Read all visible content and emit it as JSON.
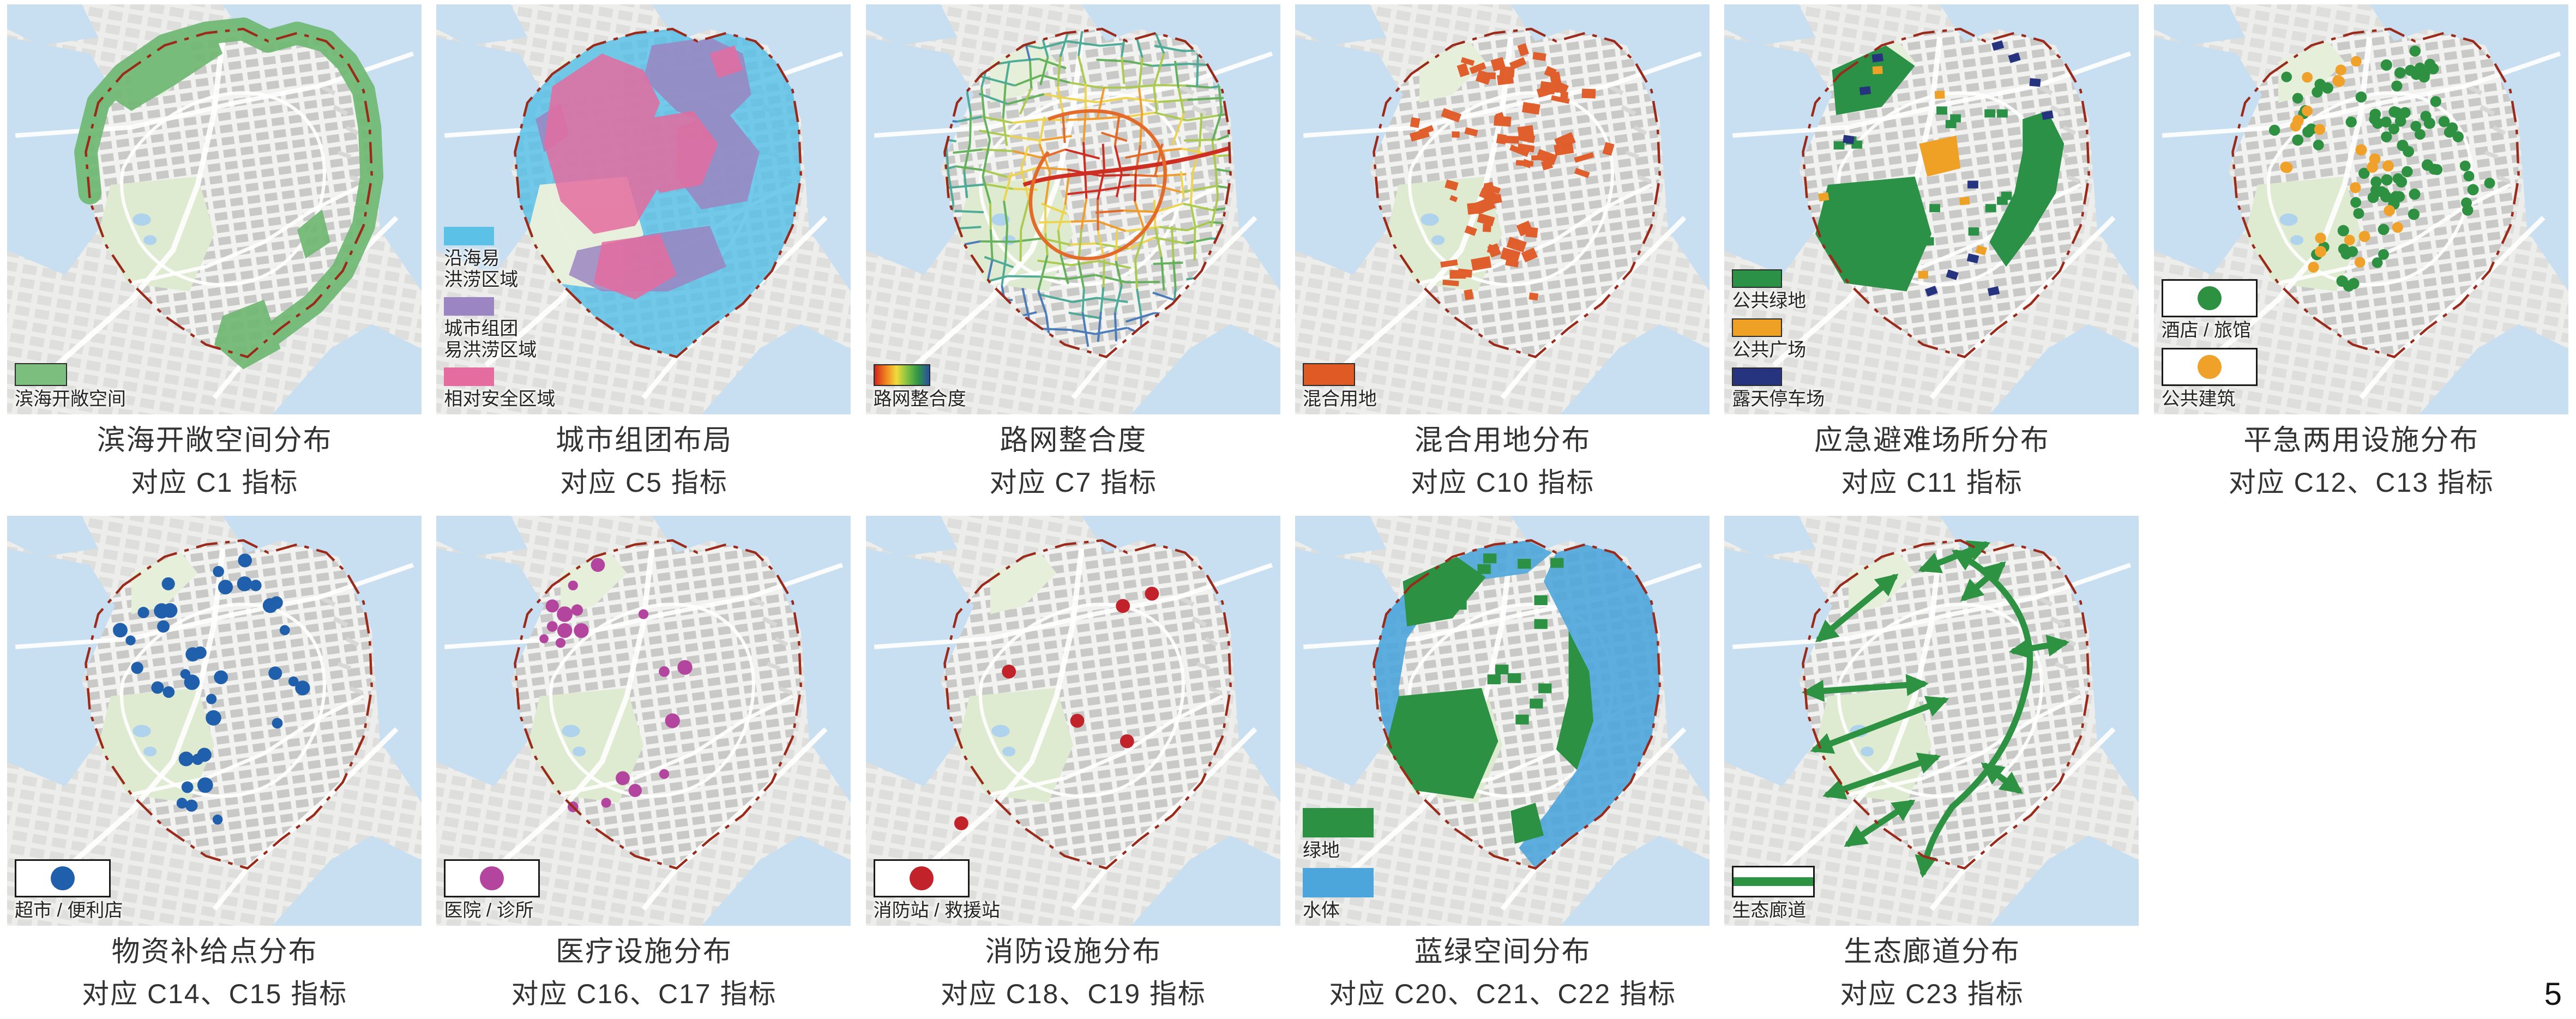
{
  "page_number": "5",
  "base_map": {
    "boundary_color": "#9C2A1A",
    "water_color": "#C7DFF0",
    "land_color": "#EDEDEB",
    "blocks_outside_color": "#DBDBD9",
    "blocks_inside_color": "#C7C7C5",
    "park_color": "#DFEBD0",
    "lake_color": "#AFD3EC"
  },
  "panels": [
    {
      "id": "coastal-open-space",
      "caption_line1": "滨海开敞空间分布",
      "caption_line2": "对应 C1 指标",
      "legend": [
        {
          "type": "swatch",
          "label": "滨海开敞空间",
          "color": "#7CBE7E",
          "border": true
        }
      ],
      "overlay": {
        "kind": "coastband",
        "color": "#6FB873"
      }
    },
    {
      "id": "urban-clusters",
      "caption_line1": "城市组团布局",
      "caption_line2": "对应 C5 指标",
      "legend": [
        {
          "type": "swatch",
          "small": true,
          "label": "沿海易\n洪涝区域",
          "color": "#5BC1E7"
        },
        {
          "type": "swatch",
          "small": true,
          "label": "城市组团\n易洪涝区域",
          "color": "#9B85C2"
        },
        {
          "type": "swatch",
          "small": true,
          "label": "相对安全区域",
          "color": "#E46C9F"
        }
      ],
      "overlay": {
        "kind": "floodzones",
        "coastal": "#5BC1E7",
        "cluster": "#9B85C2",
        "safe": "#E46C9F"
      }
    },
    {
      "id": "road-integration",
      "caption_line1": "路网整合度",
      "caption_line2": "对应 C7 指标",
      "legend": [
        {
          "type": "gradient",
          "label": "路网整合度",
          "colors": [
            "#D1251B",
            "#F0811F",
            "#F2DA3C",
            "#7FC141",
            "#2E9447",
            "#2C4FA0"
          ]
        }
      ],
      "overlay": {
        "kind": "roadnet",
        "palette": [
          "#CE2418",
          "#E4641F",
          "#F09A26",
          "#EDD34B",
          "#A8C94A",
          "#5FAE57",
          "#45A893",
          "#4478B8",
          "#2C3F95"
        ]
      }
    },
    {
      "id": "mixed-use-land",
      "caption_line1": "混合用地分布",
      "caption_line2": "对应 C10 指标",
      "legend": [
        {
          "type": "swatch",
          "label": "混合用地",
          "color": "#E05A26",
          "border": true
        }
      ],
      "overlay": {
        "kind": "blocks",
        "color": "#E05A26",
        "count": 72,
        "clusters": [
          [
            50,
            18,
            5,
            12
          ],
          [
            65,
            20,
            4.5,
            10
          ],
          [
            55,
            35,
            5,
            14
          ],
          [
            45,
            48,
            5,
            10
          ],
          [
            55,
            60,
            5,
            10
          ],
          [
            35,
            30,
            4,
            6
          ],
          [
            40,
            65,
            4,
            6
          ],
          [
            70,
            40,
            3.5,
            4
          ]
        ]
      }
    },
    {
      "id": "emergency-shelters",
      "caption_line1": "应急避难场所分布",
      "caption_line2": "对应 C11 指标",
      "legend": [
        {
          "type": "swatch",
          "small": true,
          "label": "公共绿地",
          "color": "#2B9147",
          "border": true
        },
        {
          "type": "swatch",
          "small": true,
          "label": "公共广场",
          "color": "#EFA125",
          "border": true
        },
        {
          "type": "swatch",
          "small": true,
          "label": "露天停车场",
          "color": "#26337E",
          "border": true
        }
      ],
      "overlay": {
        "kind": "shelters",
        "green": "#2B9147",
        "orange": "#EFA125",
        "navy": "#26337E",
        "green_count": 22,
        "navy_rects": [
          [
            66,
            10
          ],
          [
            70,
            13
          ],
          [
            75,
            19
          ],
          [
            37,
            13
          ],
          [
            34,
            21
          ],
          [
            78,
            27
          ],
          [
            60,
            44
          ],
          [
            55,
            66
          ],
          [
            60,
            62
          ],
          [
            50,
            70
          ],
          [
            30,
            33
          ],
          [
            65,
            70
          ]
        ],
        "orange_rects": [
          [
            37,
            16
          ],
          [
            52,
            22
          ],
          [
            24,
            47
          ],
          [
            58,
            48
          ],
          [
            48,
            66
          ],
          [
            62,
            60
          ]
        ]
      }
    },
    {
      "id": "dual-use-facilities",
      "caption_line1": "平急两用设施分布",
      "caption_line2": "对应 C12、C13 指标",
      "legend": [
        {
          "type": "dotbox",
          "label": "酒店 / 旅馆",
          "color": "#2E9142"
        },
        {
          "type": "dotbox",
          "label": "公共建筑",
          "color": "#F0A12A"
        }
      ],
      "overlay": {
        "kind": "dots",
        "groups": [
          {
            "color": "#2E9142",
            "r": [
              1.3,
              1.4
            ],
            "seed": 11,
            "clusters": [
              [
                62,
                20,
                5,
                16
              ],
              [
                68,
                35,
                4.5,
                10
              ],
              [
                40,
                22,
                4.5,
                9
              ],
              [
                55,
                45,
                5.5,
                18
              ],
              [
                48,
                62,
                5,
                13
              ],
              [
                35,
                32,
                3.5,
                5
              ],
              [
                75,
                45,
                3.5,
                6
              ],
              [
                57,
                30,
                4,
                8
              ]
            ]
          },
          {
            "color": "#F0A12A",
            "r": [
              1.3,
              1.4
            ],
            "seed": 22,
            "clusters": [
              [
                44,
                18,
                3.5,
                5
              ],
              [
                35,
                28,
                3.5,
                4
              ],
              [
                52,
                40,
                3.5,
                5
              ],
              [
                46,
                60,
                4.5,
                6
              ],
              [
                60,
                55,
                3,
                2
              ],
              [
                30,
                40,
                2.5,
                2
              ]
            ]
          }
        ]
      }
    },
    {
      "id": "supply-points",
      "caption_line1": "物资补给点分布",
      "caption_line2": "对应 C14、C15 指标",
      "legend": [
        {
          "type": "dotbox",
          "label": "超市 / 便利店",
          "color": "#1F5FAC"
        }
      ],
      "overlay": {
        "kind": "dots",
        "groups": [
          {
            "color": "#1F5FAC",
            "r": [
              1.2,
              1.9
            ],
            "seed": 33,
            "clusters": [
              [
                38,
                22,
                4,
                5
              ],
              [
                55,
                15,
                3.5,
                4
              ],
              [
                66,
                22,
                3.5,
                4
              ],
              [
                50,
                35,
                5,
                6
              ],
              [
                63,
                42,
                3.5,
                4
              ],
              [
                35,
                40,
                3.5,
                3
              ],
              [
                45,
                62,
                5,
                8
              ],
              [
                52,
                72,
                1.5,
                1
              ],
              [
                29,
                30,
                2,
                2
              ]
            ]
          }
        ]
      }
    },
    {
      "id": "medical-facilities",
      "caption_line1": "医疗设施分布",
      "caption_line2": "对应 C16、C17 指标",
      "legend": [
        {
          "type": "dotbox",
          "label": "医院 / 诊所",
          "color": "#B3459F"
        }
      ],
      "overlay": {
        "kind": "points",
        "color": "#B3459F",
        "points": [
          [
            28,
            22,
            1.6
          ],
          [
            31,
            24,
            1.9
          ],
          [
            34,
            23,
            1.4
          ],
          [
            28,
            27,
            1.3
          ],
          [
            31,
            28,
            1.8
          ],
          [
            35,
            28,
            1.8
          ],
          [
            30,
            31,
            1.2
          ],
          [
            26,
            30,
            1.1
          ],
          [
            39,
            12,
            1.7
          ],
          [
            33,
            17,
            1.2
          ],
          [
            50,
            24,
            1.2
          ],
          [
            55,
            38,
            1.3
          ],
          [
            60,
            37,
            1.8
          ],
          [
            57,
            50,
            1.8
          ],
          [
            45,
            64,
            1.7
          ],
          [
            48,
            67,
            1.6
          ],
          [
            55,
            63,
            1.2
          ],
          [
            33,
            71,
            1.3
          ],
          [
            41,
            70,
            1.2
          ]
        ]
      }
    },
    {
      "id": "fire-facilities",
      "caption_line1": "消防设施分布",
      "caption_line2": "对应 C18、C19 指标",
      "legend": [
        {
          "type": "dotbox",
          "label": "消防站 / 救援站",
          "color": "#C2232B"
        }
      ],
      "overlay": {
        "kind": "points",
        "color": "#C2232B",
        "points": [
          [
            62,
            22,
            1.7
          ],
          [
            69,
            19,
            1.7
          ],
          [
            34.5,
            38,
            1.7
          ],
          [
            51,
            50,
            1.7
          ],
          [
            63,
            55,
            1.7
          ],
          [
            23,
            75,
            1.7
          ]
        ]
      }
    },
    {
      "id": "blue-green-space",
      "caption_line1": "蓝绿空间分布",
      "caption_line2": "对应 C20、C21、C22 指标",
      "legend": [
        {
          "type": "swatch",
          "wide": true,
          "label": "绿地",
          "color": "#2D9144"
        },
        {
          "type": "swatch",
          "wide": true,
          "label": "水体",
          "color": "#4DA6DB"
        }
      ],
      "overlay": {
        "kind": "bluegreen",
        "green": "#2D9144",
        "blue": "#4DA6DB",
        "green_count": 18
      }
    },
    {
      "id": "ecological-corridors",
      "caption_line1": "生态廊道分布",
      "caption_line2": "对应 C23 指标",
      "legend": [
        {
          "type": "stripebox",
          "label": "生态廊道",
          "color": "#2E9243"
        }
      ],
      "overlay": {
        "kind": "corridors",
        "color": "#2E9243",
        "arrows": [
          [
            23,
            30,
            41,
            15
          ],
          [
            48,
            13,
            63,
            7
          ],
          [
            58,
            20,
            67,
            12
          ],
          [
            70,
            33,
            82,
            31
          ],
          [
            20,
            43,
            48,
            41
          ],
          [
            22,
            57,
            53,
            45
          ],
          [
            25,
            68,
            51,
            59
          ],
          [
            30,
            80,
            45,
            70
          ],
          [
            63,
            61,
            71,
            67
          ]
        ]
      }
    }
  ]
}
